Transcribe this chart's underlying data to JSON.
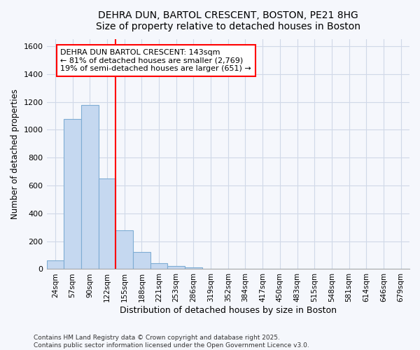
{
  "title_line1": "DEHRA DUN, BARTOL CRESCENT, BOSTON, PE21 8HG",
  "title_line2": "Size of property relative to detached houses in Boston",
  "xlabel": "Distribution of detached houses by size in Boston",
  "ylabel": "Number of detached properties",
  "categories": [
    "24sqm",
    "57sqm",
    "90sqm",
    "122sqm",
    "155sqm",
    "188sqm",
    "221sqm",
    "253sqm",
    "286sqm",
    "319sqm",
    "352sqm",
    "384sqm",
    "417sqm",
    "450sqm",
    "483sqm",
    "515sqm",
    "548sqm",
    "581sqm",
    "614sqm",
    "646sqm",
    "679sqm"
  ],
  "values": [
    65,
    1080,
    1180,
    650,
    280,
    125,
    40,
    20,
    10,
    0,
    0,
    0,
    0,
    0,
    0,
    0,
    0,
    0,
    0,
    0,
    0
  ],
  "bar_color": "#c5d8f0",
  "bar_edge_color": "#7eadd4",
  "red_line_x": 3.5,
  "annotation_text": "DEHRA DUN BARTOL CRESCENT: 143sqm\n← 81% of detached houses are smaller (2,769)\n19% of semi-detached houses are larger (651) →",
  "ylim": [
    0,
    1650
  ],
  "yticks": [
    0,
    200,
    400,
    600,
    800,
    1000,
    1200,
    1400,
    1600
  ],
  "background_color": "#f5f7fc",
  "plot_background": "#f5f7fc",
  "grid_color": "#d0d8e8",
  "footer_line1": "Contains HM Land Registry data © Crown copyright and database right 2025.",
  "footer_line2": "Contains public sector information licensed under the Open Government Licence v3.0."
}
